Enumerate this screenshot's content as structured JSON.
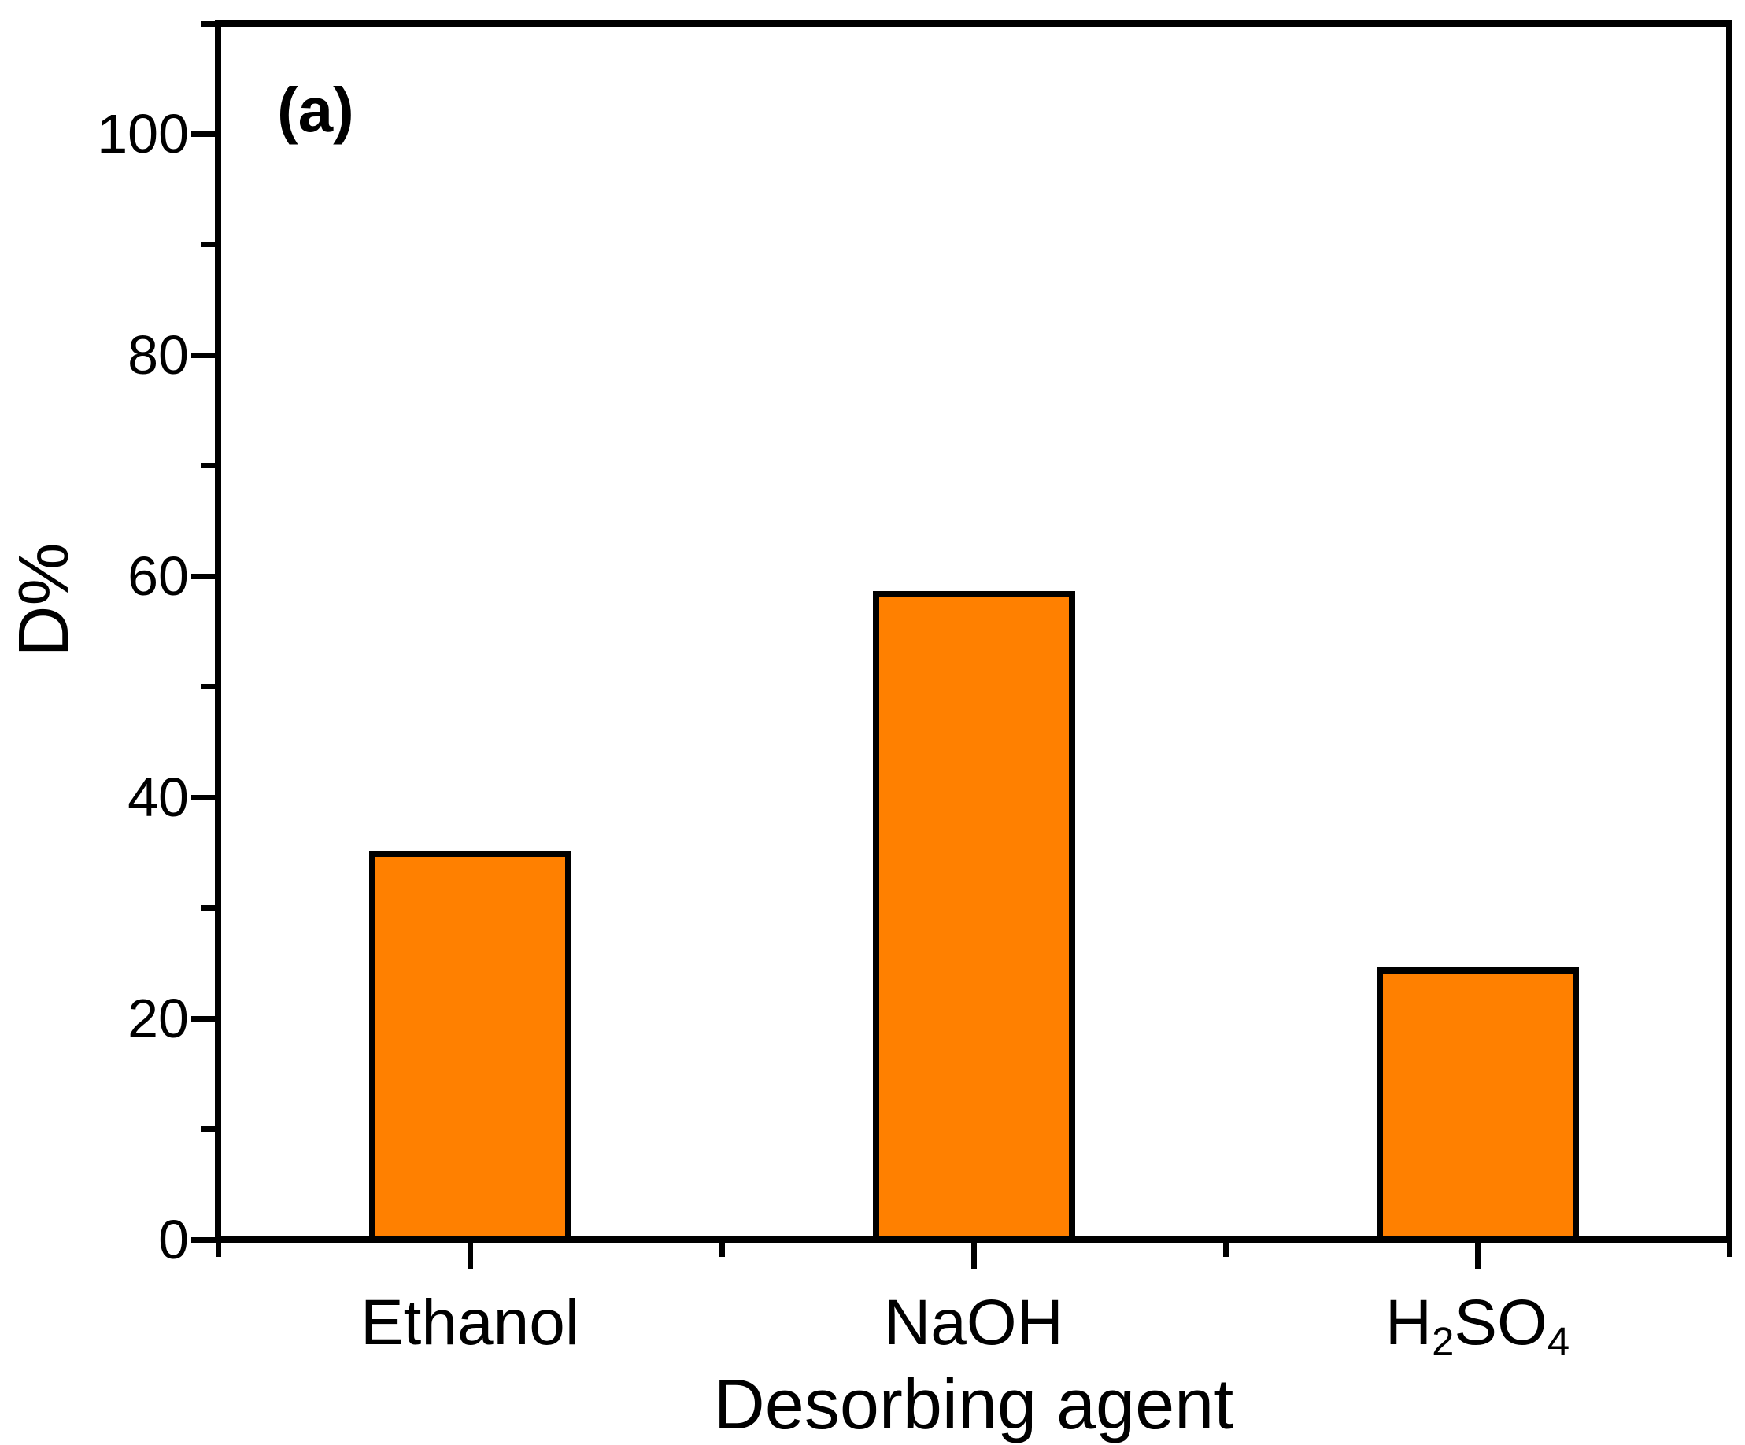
{
  "panel_label": "(a)",
  "chart_data": {
    "type": "bar",
    "title": "",
    "xlabel": "Desorbing agent",
    "ylabel": "D%",
    "ylim": [
      0,
      110
    ],
    "ytick_major": [
      0,
      20,
      40,
      60,
      80,
      100
    ],
    "ytick_minor": [
      10,
      30,
      50,
      70,
      90,
      110
    ],
    "categories": [
      "Ethanol",
      "NaOH",
      "H2SO4"
    ],
    "category_parts": [
      [
        {
          "text": "Ethanol",
          "sub": false
        }
      ],
      [
        {
          "text": "NaOH",
          "sub": false
        }
      ],
      [
        {
          "text": "H",
          "sub": false
        },
        {
          "text": "2",
          "sub": true
        },
        {
          "text": "SO",
          "sub": false
        },
        {
          "text": "4",
          "sub": true
        }
      ]
    ],
    "values": [
      35.2,
      58.7,
      24.6
    ],
    "bar_color": "#FF8000",
    "bar_border_color": "#000000",
    "axis_color": "#000000",
    "background_color": "#FFFFFF",
    "grid": false,
    "legend": "none"
  }
}
